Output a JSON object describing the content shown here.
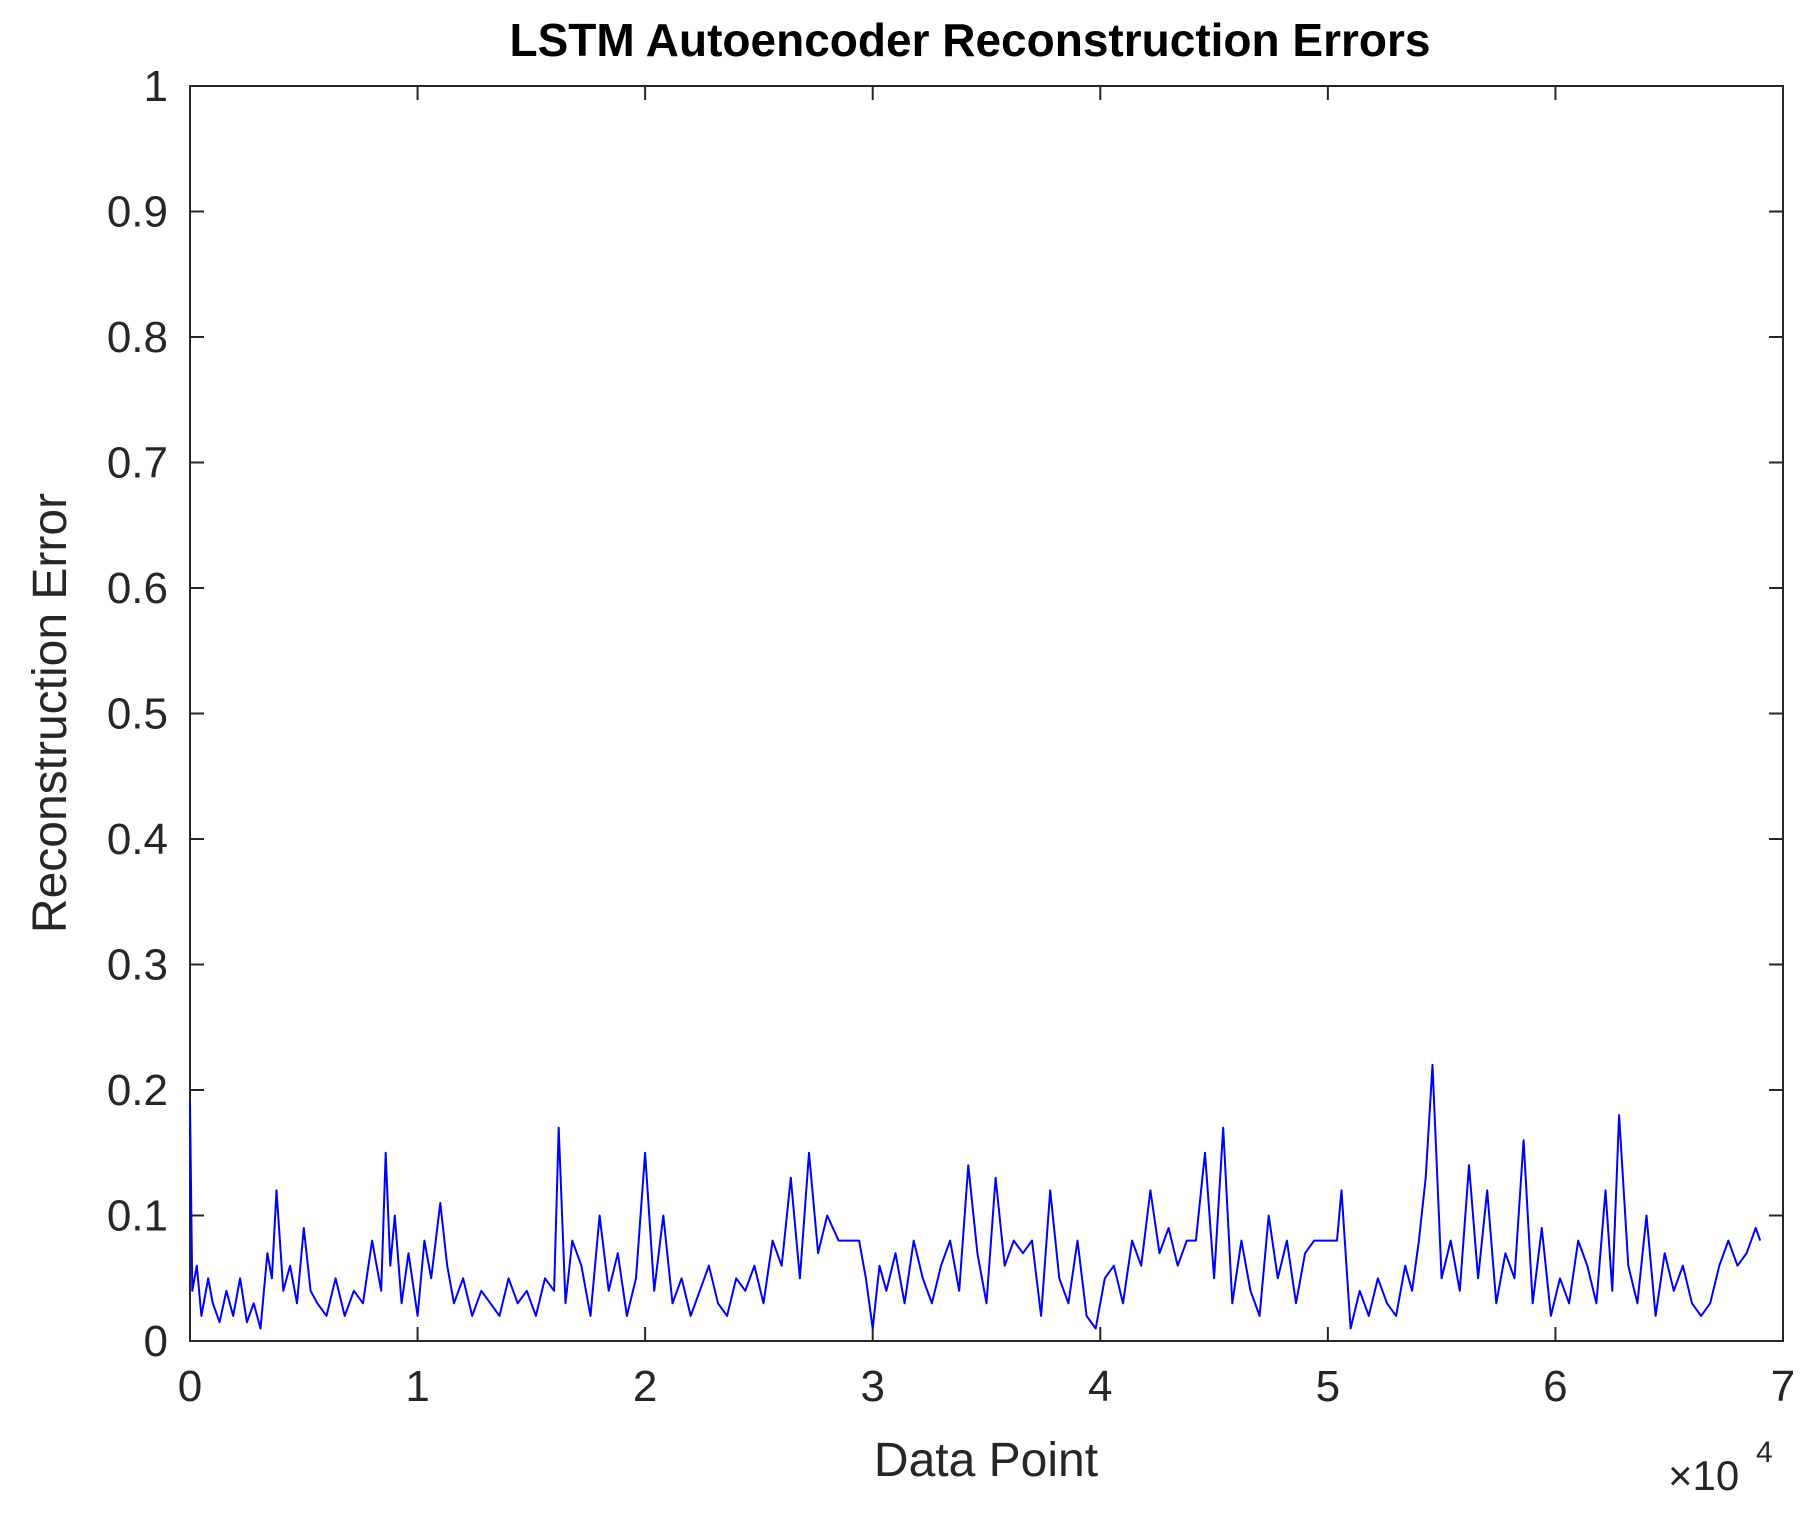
{
  "chart_data": {
    "type": "line",
    "title": "LSTM Autoencoder Reconstruction Errors",
    "xlabel": "Data Point",
    "ylabel": "Reconstruction Error",
    "x_exponent_prefix": "×10",
    "x_exponent_power": "4",
    "xlim": [
      0,
      7
    ],
    "ylim": [
      0,
      1
    ],
    "x_scale_note": "x values in units of 10^4 data points",
    "x_ticks": [
      "0",
      "1",
      "2",
      "3",
      "4",
      "5",
      "6",
      "7"
    ],
    "y_ticks": [
      "0",
      "0.1",
      "0.2",
      "0.3",
      "0.4",
      "0.5",
      "0.6",
      "0.7",
      "0.8",
      "0.9",
      "1"
    ],
    "grid": false,
    "line_color": "#0000ff",
    "series": [
      {
        "x": [
          0.0,
          0.01,
          0.03,
          0.05,
          0.08,
          0.1,
          0.13,
          0.16,
          0.19,
          0.22,
          0.25,
          0.28,
          0.31,
          0.34,
          0.36,
          0.38,
          0.41,
          0.44,
          0.47,
          0.5,
          0.53,
          0.56,
          0.6,
          0.64,
          0.68,
          0.72,
          0.76,
          0.8,
          0.84,
          0.86,
          0.88,
          0.9,
          0.93,
          0.96,
          1.0,
          1.03,
          1.06,
          1.1,
          1.13,
          1.16,
          1.2,
          1.24,
          1.28,
          1.32,
          1.36,
          1.4,
          1.44,
          1.48,
          1.52,
          1.56,
          1.6,
          1.62,
          1.65,
          1.68,
          1.72,
          1.76,
          1.8,
          1.84,
          1.88,
          1.92,
          1.96,
          2.0,
          2.04,
          2.08,
          2.12,
          2.16,
          2.2,
          2.24,
          2.28,
          2.32,
          2.36,
          2.4,
          2.44,
          2.48,
          2.52,
          2.56,
          2.6,
          2.64,
          2.68,
          2.72,
          2.76,
          2.8,
          2.85,
          2.9,
          2.94,
          2.97,
          3.0,
          3.03,
          3.06,
          3.1,
          3.14,
          3.18,
          3.22,
          3.26,
          3.3,
          3.34,
          3.38,
          3.42,
          3.46,
          3.5,
          3.54,
          3.58,
          3.62,
          3.66,
          3.7,
          3.74,
          3.78,
          3.82,
          3.86,
          3.9,
          3.94,
          3.98,
          4.02,
          4.06,
          4.1,
          4.14,
          4.18,
          4.22,
          4.26,
          4.3,
          4.34,
          4.38,
          4.42,
          4.46,
          4.5,
          4.54,
          4.58,
          4.62,
          4.66,
          4.7,
          4.74,
          4.78,
          4.82,
          4.86,
          4.9,
          4.94,
          4.98,
          5.02,
          5.04,
          5.06,
          5.1,
          5.14,
          5.18,
          5.22,
          5.26,
          5.3,
          5.34,
          5.37,
          5.4,
          5.43,
          5.46,
          5.5,
          5.54,
          5.58,
          5.62,
          5.66,
          5.7,
          5.74,
          5.78,
          5.82,
          5.86,
          5.9,
          5.94,
          5.98,
          6.02,
          6.06,
          6.1,
          6.14,
          6.18,
          6.22,
          6.25,
          6.28,
          6.32,
          6.36,
          6.4,
          6.44,
          6.48,
          6.52,
          6.56,
          6.6,
          6.64,
          6.68,
          6.72,
          6.76,
          6.8,
          6.84,
          6.88,
          6.9
        ],
        "y": [
          0.19,
          0.04,
          0.06,
          0.02,
          0.05,
          0.03,
          0.015,
          0.04,
          0.02,
          0.05,
          0.015,
          0.03,
          0.01,
          0.07,
          0.05,
          0.12,
          0.04,
          0.06,
          0.03,
          0.09,
          0.04,
          0.03,
          0.02,
          0.05,
          0.02,
          0.04,
          0.03,
          0.08,
          0.04,
          0.15,
          0.06,
          0.1,
          0.03,
          0.07,
          0.02,
          0.08,
          0.05,
          0.11,
          0.06,
          0.03,
          0.05,
          0.02,
          0.04,
          0.03,
          0.02,
          0.05,
          0.03,
          0.04,
          0.02,
          0.05,
          0.04,
          0.17,
          0.03,
          0.08,
          0.06,
          0.02,
          0.1,
          0.04,
          0.07,
          0.02,
          0.05,
          0.15,
          0.04,
          0.1,
          0.03,
          0.05,
          0.02,
          0.04,
          0.06,
          0.03,
          0.02,
          0.05,
          0.04,
          0.06,
          0.03,
          0.08,
          0.06,
          0.13,
          0.05,
          0.15,
          0.07,
          0.1,
          0.08,
          0.08,
          0.08,
          0.05,
          0.01,
          0.06,
          0.04,
          0.07,
          0.03,
          0.08,
          0.05,
          0.03,
          0.06,
          0.08,
          0.04,
          0.14,
          0.07,
          0.03,
          0.13,
          0.06,
          0.08,
          0.07,
          0.08,
          0.02,
          0.12,
          0.05,
          0.03,
          0.08,
          0.02,
          0.01,
          0.05,
          0.06,
          0.03,
          0.08,
          0.06,
          0.12,
          0.07,
          0.09,
          0.06,
          0.08,
          0.08,
          0.15,
          0.05,
          0.17,
          0.03,
          0.08,
          0.04,
          0.02,
          0.1,
          0.05,
          0.08,
          0.03,
          0.07,
          0.08,
          0.08,
          0.08,
          0.08,
          0.12,
          0.01,
          0.04,
          0.02,
          0.05,
          0.03,
          0.02,
          0.06,
          0.04,
          0.08,
          0.13,
          0.22,
          0.05,
          0.08,
          0.04,
          0.14,
          0.05,
          0.12,
          0.03,
          0.07,
          0.05,
          0.16,
          0.03,
          0.09,
          0.02,
          0.05,
          0.03,
          0.08,
          0.06,
          0.03,
          0.12,
          0.04,
          0.18,
          0.06,
          0.03,
          0.1,
          0.02,
          0.07,
          0.04,
          0.06,
          0.03,
          0.02,
          0.03,
          0.06,
          0.08,
          0.06,
          0.07,
          0.09,
          0.08
        ]
      }
    ]
  }
}
